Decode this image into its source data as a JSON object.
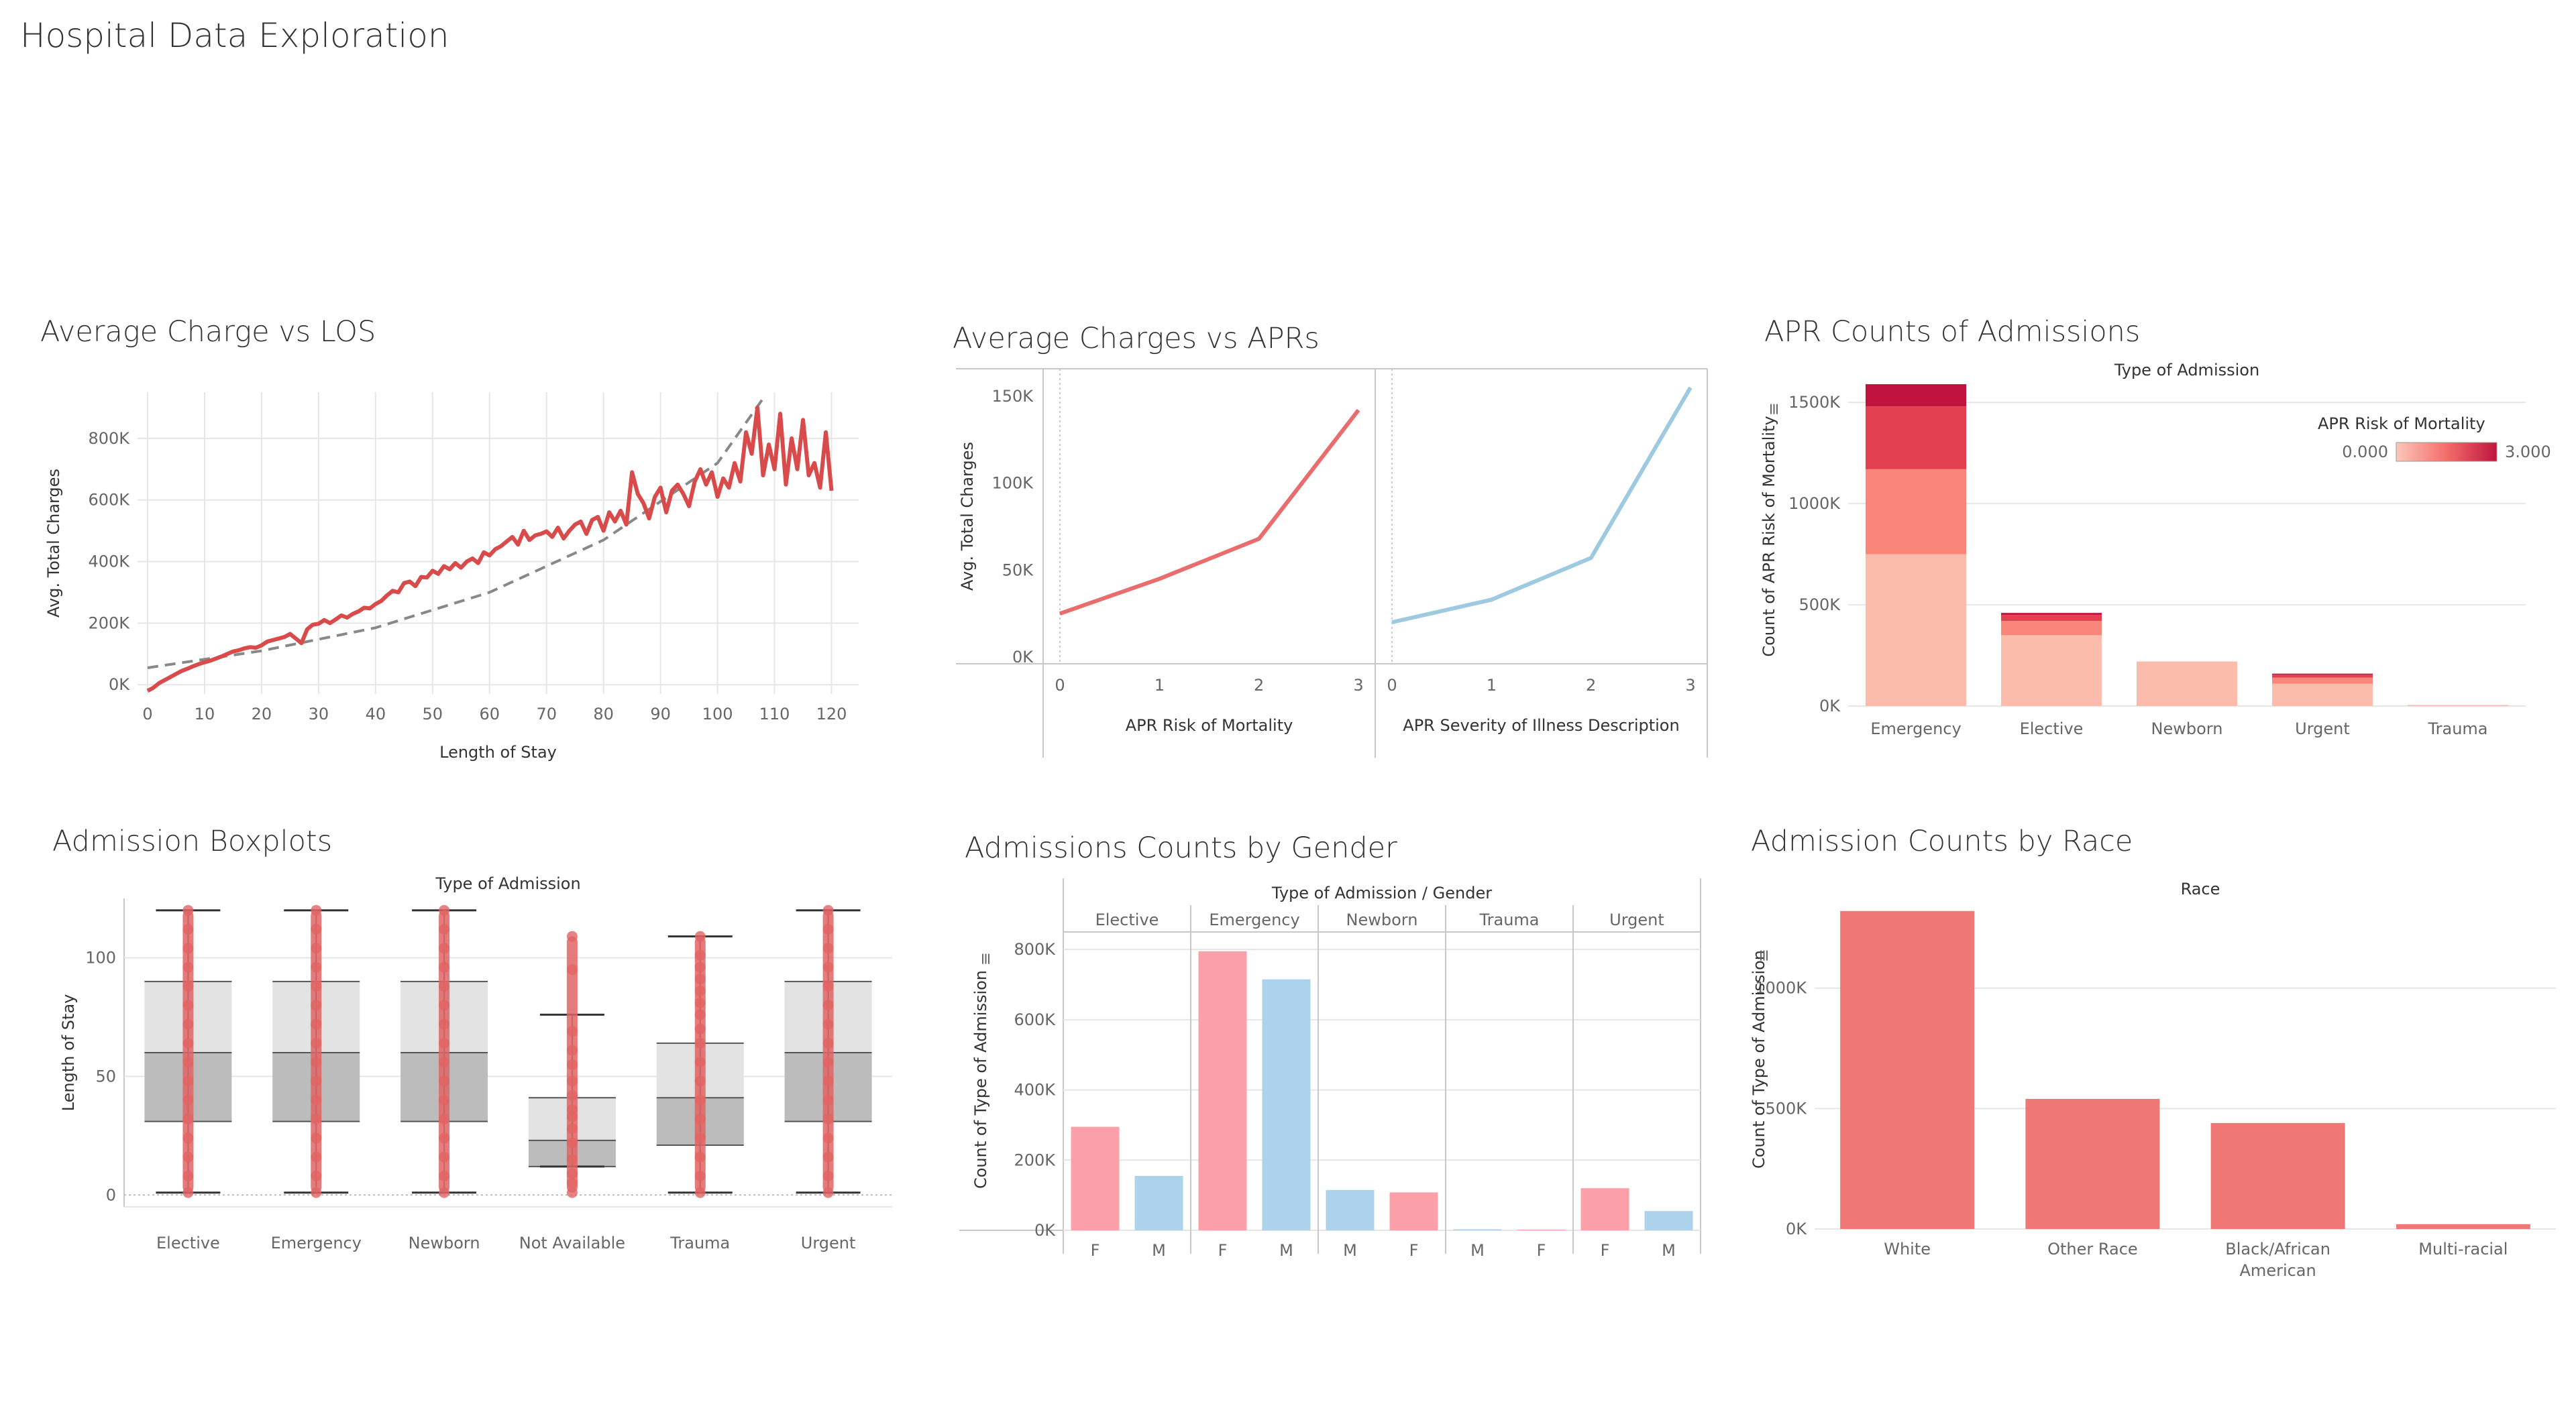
{
  "dashboard_title": "Hospital Data Exploration",
  "colors": {
    "red_line": "#d94a4a",
    "blue_line": "#9ecae1",
    "bar_red": "#ef7877",
    "bar_pink": "#fba0a8",
    "bar_blue": "#acd3eb",
    "box_light": "#e3e3e3",
    "box_dark": "#bcbcbc",
    "trend": "#888888"
  },
  "charts": [
    {
      "key": "los",
      "title": "Average Charge vs LOS",
      "chart_data": {
        "type": "line",
        "xlabel": "Length of Stay",
        "ylabel": "Avg. Total Charges",
        "xlim": [
          0,
          123
        ],
        "ylim": [
          -30000,
          950000
        ],
        "xticks": [
          0,
          10,
          20,
          30,
          40,
          50,
          60,
          70,
          80,
          90,
          100,
          110,
          120
        ],
        "yticks": [
          0,
          200000,
          400000,
          600000,
          800000
        ],
        "ytick_labels": [
          "0K",
          "200K",
          "400K",
          "600K",
          "800K"
        ],
        "trend": {
          "style": "dashed",
          "x": [
            0,
            20,
            40,
            60,
            80,
            100,
            108
          ],
          "y": [
            55000,
            110000,
            185000,
            300000,
            470000,
            720000,
            930000
          ]
        },
        "x": [
          0,
          1,
          2,
          3,
          4,
          5,
          6,
          7,
          8,
          9,
          10,
          11,
          12,
          13,
          14,
          15,
          16,
          17,
          18,
          19,
          20,
          21,
          22,
          23,
          24,
          25,
          26,
          27,
          28,
          29,
          30,
          31,
          32,
          33,
          34,
          35,
          36,
          37,
          38,
          39,
          40,
          41,
          42,
          43,
          44,
          45,
          46,
          47,
          48,
          49,
          50,
          51,
          52,
          53,
          54,
          55,
          56,
          57,
          58,
          59,
          60,
          61,
          62,
          63,
          64,
          65,
          66,
          67,
          68,
          69,
          70,
          71,
          72,
          73,
          74,
          75,
          76,
          77,
          78,
          79,
          80,
          81,
          82,
          83,
          84,
          85,
          86,
          87,
          88,
          89,
          90,
          91,
          92,
          93,
          94,
          95,
          96,
          97,
          98,
          99,
          100,
          101,
          102,
          103,
          104,
          105,
          106,
          107,
          108,
          109,
          110,
          111,
          112,
          113,
          114,
          115,
          116,
          117,
          118,
          119,
          120
        ],
        "y": [
          -20000,
          -10000,
          5000,
          15000,
          25000,
          35000,
          45000,
          52000,
          60000,
          67000,
          73000,
          78000,
          85000,
          92000,
          100000,
          108000,
          112000,
          118000,
          122000,
          120000,
          128000,
          140000,
          145000,
          150000,
          155000,
          165000,
          150000,
          135000,
          180000,
          195000,
          198000,
          210000,
          200000,
          212000,
          225000,
          218000,
          230000,
          238000,
          250000,
          248000,
          262000,
          272000,
          290000,
          305000,
          300000,
          330000,
          335000,
          320000,
          350000,
          348000,
          370000,
          360000,
          385000,
          375000,
          395000,
          380000,
          400000,
          410000,
          395000,
          430000,
          420000,
          440000,
          450000,
          465000,
          480000,
          455000,
          500000,
          470000,
          485000,
          490000,
          498000,
          480000,
          510000,
          475000,
          500000,
          520000,
          530000,
          490000,
          535000,
          545000,
          500000,
          560000,
          530000,
          565000,
          520000,
          690000,
          620000,
          590000,
          540000,
          610000,
          640000,
          560000,
          630000,
          650000,
          620000,
          580000,
          660000,
          700000,
          650000,
          690000,
          610000,
          670000,
          640000,
          720000,
          660000,
          820000,
          750000,
          900000,
          680000,
          780000,
          700000,
          880000,
          650000,
          800000,
          700000,
          860000,
          680000,
          720000,
          640000,
          820000,
          630000
        ]
      }
    },
    {
      "key": "apr",
      "title": "Average Charges vs APRs",
      "chart_data": [
        {
          "type": "line",
          "facet": "APR Risk of Mortality",
          "xlabel": "APR Risk of Mortality",
          "ylabel": "Avg. Total Charges",
          "x": [
            0,
            1,
            2,
            3
          ],
          "y": [
            25000,
            45000,
            68000,
            142000
          ],
          "ylim": [
            0,
            160000
          ],
          "yticks": [
            0,
            50000,
            100000,
            150000
          ],
          "ytick_labels": [
            "0K",
            "50K",
            "100K",
            "150K"
          ],
          "color": "#ea6d6d"
        },
        {
          "type": "line",
          "facet": "APR Severity of Illness Description",
          "xlabel": "APR Severity of Illness Description",
          "x": [
            0,
            1,
            2,
            3
          ],
          "y": [
            20000,
            33000,
            57000,
            155000
          ],
          "ylim": [
            0,
            160000
          ],
          "color": "#9ecae1"
        }
      ]
    },
    {
      "key": "aprcounts",
      "title": "APR Counts of Admissions",
      "chart_data": {
        "type": "bar",
        "header": "Type of Admission",
        "ylabel": "Count of APR Risk of Mortality",
        "categories": [
          "Emergency",
          "Elective",
          "Newborn",
          "Urgent",
          "Trauma"
        ],
        "ylim": [
          0,
          1600000
        ],
        "yticks": [
          0,
          500000,
          1000000,
          1500000
        ],
        "ytick_labels": [
          "0K",
          "500K",
          "1000K",
          "1500K"
        ],
        "legend": {
          "title": "APR Risk of Mortality",
          "min_label": "0.000",
          "max_label": "3.000",
          "position": "top-right"
        },
        "series": [
          {
            "name": "0",
            "color": "#fcbcab",
            "values": [
              750000,
              350000,
              220000,
              110000,
              5000
            ]
          },
          {
            "name": "1",
            "color": "#f8877a",
            "values": [
              420000,
              70000,
              0,
              30000,
              0
            ]
          },
          {
            "name": "2",
            "color": "#e2404e",
            "values": [
              310000,
              30000,
              0,
              15000,
              0
            ]
          },
          {
            "name": "3",
            "color": "#c0143f",
            "values": [
              110000,
              10000,
              0,
              5000,
              0
            ]
          }
        ]
      }
    },
    {
      "key": "box",
      "title": "Admission Boxplots",
      "chart_data": {
        "type": "box",
        "header": "Type of Admission",
        "ylabel": "Length of Stay",
        "ylim": [
          -5,
          125
        ],
        "yticks": [
          0,
          50,
          100
        ],
        "categories": [
          "Elective",
          "Emergency",
          "Newborn",
          "Not Available",
          "Trauma",
          "Urgent"
        ],
        "boxes": [
          {
            "min": 1,
            "q1": 31,
            "median": 60,
            "q3": 90,
            "max": 120
          },
          {
            "min": 1,
            "q1": 31,
            "median": 60,
            "q3": 90,
            "max": 120
          },
          {
            "min": 1,
            "q1": 31,
            "median": 60,
            "q3": 90,
            "max": 120
          },
          {
            "min": 12,
            "q1": 12,
            "median": 23,
            "q3": 41,
            "max": 76
          },
          {
            "min": 1,
            "q1": 21,
            "median": 41,
            "q3": 64,
            "max": 109
          },
          {
            "min": 1,
            "q1": 31,
            "median": 60,
            "q3": 90,
            "max": 120
          }
        ],
        "points": [
          [
            1,
            8,
            16,
            24,
            32,
            40,
            48,
            56,
            64,
            72,
            80,
            88,
            96,
            104,
            112,
            120
          ],
          [
            1,
            8,
            16,
            24,
            32,
            40,
            48,
            56,
            64,
            72,
            80,
            88,
            96,
            104,
            112,
            120
          ],
          [
            1,
            8,
            16,
            24,
            32,
            40,
            48,
            56,
            64,
            72,
            80,
            88,
            96,
            104,
            112,
            120
          ],
          [
            1,
            5,
            9,
            15,
            22,
            28,
            33,
            36,
            42,
            48,
            55,
            61,
            69,
            95,
            109
          ],
          [
            1,
            8,
            16,
            24,
            32,
            40,
            48,
            56,
            64,
            70,
            76,
            81,
            86,
            91,
            96,
            101,
            109
          ],
          [
            1,
            8,
            16,
            24,
            32,
            40,
            48,
            56,
            64,
            72,
            80,
            88,
            96,
            104,
            112,
            120
          ]
        ]
      }
    },
    {
      "key": "gender",
      "title": "Admissions Counts by Gender",
      "chart_data": {
        "type": "bar",
        "header": "Type of Admission / Gender",
        "ylabel": "Count of Type of Admission",
        "ylim": [
          0,
          850000
        ],
        "yticks": [
          0,
          200000,
          400000,
          600000,
          800000
        ],
        "ytick_labels": [
          "0K",
          "200K",
          "400K",
          "600K",
          "800K"
        ],
        "groups": [
          {
            "label": "Elective",
            "bars": [
              {
                "gender": "F",
                "value": 295000
              },
              {
                "gender": "M",
                "value": 155000
              }
            ]
          },
          {
            "label": "Emergency",
            "bars": [
              {
                "gender": "F",
                "value": 795000
              },
              {
                "gender": "M",
                "value": 715000
              }
            ]
          },
          {
            "label": "Newborn",
            "bars": [
              {
                "gender": "M",
                "value": 115000
              },
              {
                "gender": "F",
                "value": 108000
              }
            ]
          },
          {
            "label": "Trauma",
            "bars": [
              {
                "gender": "M",
                "value": 3000
              },
              {
                "gender": "F",
                "value": 2000
              }
            ]
          },
          {
            "label": "Urgent",
            "bars": [
              {
                "gender": "F",
                "value": 120000
              },
              {
                "gender": "M",
                "value": 55000
              }
            ]
          }
        ]
      }
    },
    {
      "key": "race",
      "title": "Admission Counts by Race",
      "chart_data": {
        "type": "bar",
        "header": "Race",
        "ylabel": "Count of Type of Admission",
        "ylim": [
          0,
          1400000
        ],
        "yticks": [
          0,
          500000,
          1000000
        ],
        "ytick_labels": [
          "0K",
          "500K",
          "1000K"
        ],
        "categories": [
          "White",
          "Other Race",
          "Black/African American",
          "Multi-racial"
        ],
        "category_lines": [
          [
            "White"
          ],
          [
            "Other Race"
          ],
          [
            "Black/African",
            "American"
          ],
          [
            "Multi-racial"
          ]
        ],
        "values": [
          1320000,
          540000,
          440000,
          20000
        ]
      }
    }
  ]
}
